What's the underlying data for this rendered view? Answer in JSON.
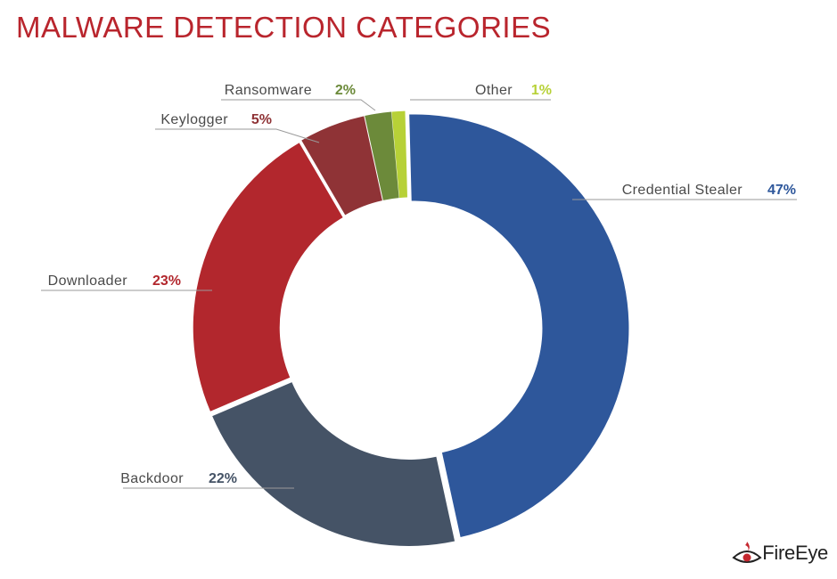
{
  "chart_data": {
    "type": "pie",
    "title": "MALWARE DETECTION CATEGORIES",
    "style": "donut",
    "slices": [
      {
        "label": "Credential Stealer",
        "value": 47,
        "value_label": "47%",
        "color": "#2e579b",
        "label_color": "#2e579b"
      },
      {
        "label": "Backdoor",
        "value": 22,
        "value_label": "22%",
        "color": "#455366",
        "label_color": "#455366"
      },
      {
        "label": "Downloader",
        "value": 23,
        "value_label": "23%",
        "color": "#b2272d",
        "label_color": "#b2272d"
      },
      {
        "label": "Keylogger",
        "value": 5,
        "value_label": "5%",
        "color": "#8f3336",
        "label_color": "#8f3336"
      },
      {
        "label": "Ransomware",
        "value": 2,
        "value_label": "2%",
        "color": "#6c8a3a",
        "label_color": "#6c8a3a"
      },
      {
        "label": "Other",
        "value": 1,
        "value_label": "1%",
        "color": "#b7d137",
        "label_color": "#b7d137"
      }
    ]
  },
  "branding": {
    "logo_text": "FireEye",
    "logo_icon": "eye-flame-icon"
  }
}
